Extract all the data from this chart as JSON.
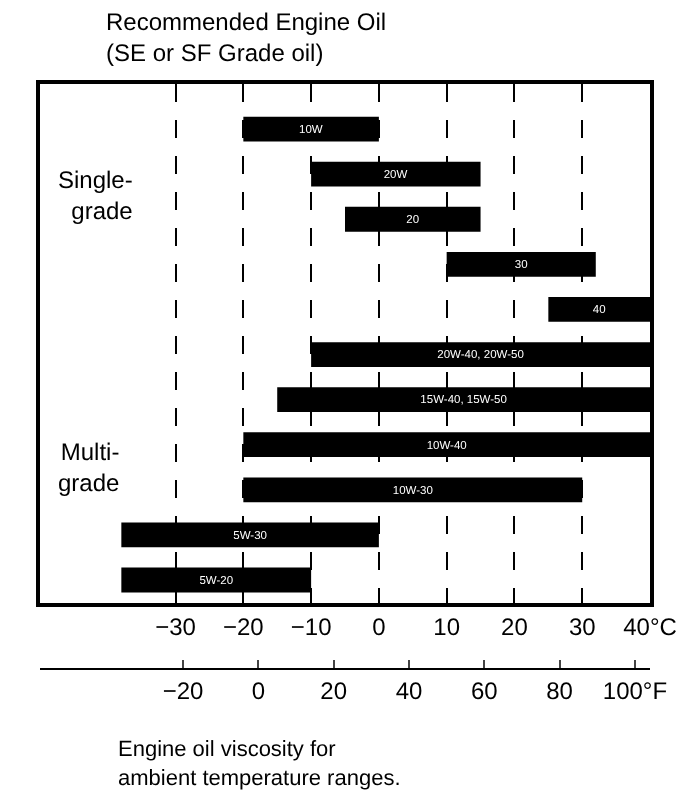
{
  "chart_data": {
    "type": "bar",
    "orientation": "horizontal",
    "title": "Recommended Engine Oil\n(SE or SF Grade oil)",
    "categories": [
      "10W",
      "20W",
      "20",
      "30",
      "40",
      "20W-40, 20W-50",
      "15W-40, 15W-50",
      "10W-40",
      "10W-30",
      "5W-30",
      "5W-20"
    ],
    "base": [
      -20,
      -10,
      -5,
      10,
      25,
      -10,
      -15,
      -20,
      -20,
      -38,
      -38
    ],
    "values": [
      20,
      25,
      20,
      22,
      15,
      50,
      55,
      60,
      50,
      38,
      28
    ],
    "color": "#000000",
    "xlim": [
      -50,
      40
    ],
    "xticks": [
      -30,
      -20,
      -10,
      0,
      10,
      20,
      30,
      {
        "value": 40,
        "label": "40°C"
      }
    ],
    "x2lim": [
      -58,
      104
    ],
    "x2ticks": [
      -20,
      0,
      20,
      40,
      60,
      80,
      {
        "value": 100,
        "label": "100°F"
      }
    ],
    "grid": "x",
    "tick_labels": "x",
    "annotations": [
      "Single-\ngrade",
      "Multi-\ngrade",
      "Engine oil viscosity for\nambient temperature ranges."
    ]
  }
}
